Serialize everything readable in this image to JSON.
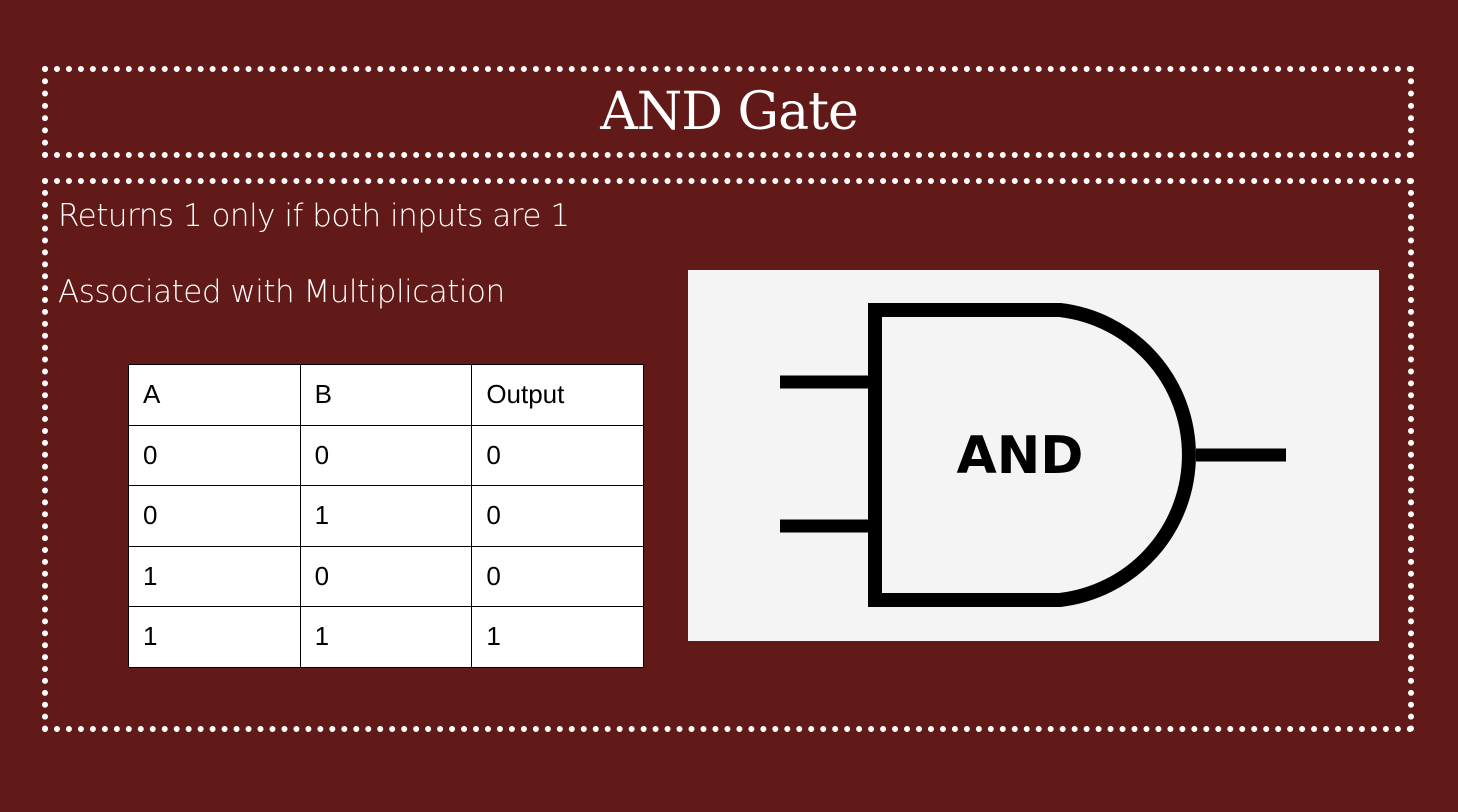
{
  "slide": {
    "title": "AND Gate",
    "lines": [
      "Returns 1 only if both inputs are 1",
      "Associated with Multiplication"
    ]
  },
  "truth_table": {
    "headers": [
      "A",
      "B",
      "Output"
    ],
    "rows": [
      [
        "0",
        "0",
        "0"
      ],
      [
        "0",
        "1",
        "0"
      ],
      [
        "1",
        "0",
        "0"
      ],
      [
        "1",
        "1",
        "1"
      ]
    ]
  },
  "gate": {
    "label": "AND",
    "icon": "and-gate-symbol"
  },
  "colors": {
    "background": "#621a18",
    "frame": "#ffffff",
    "gate_panel": "#f4f4f4"
  }
}
